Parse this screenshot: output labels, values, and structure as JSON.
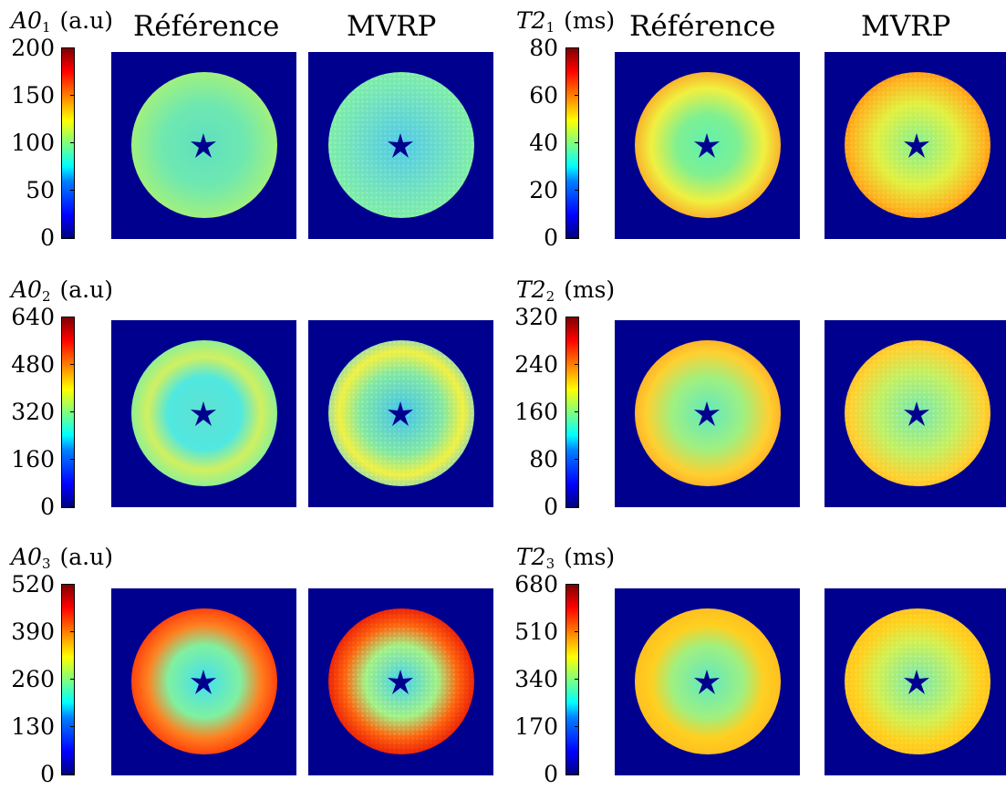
{
  "column_headers": {
    "left_reference": "Référence",
    "left_mvrp": "MVRP",
    "right_reference": "Référence",
    "right_mvrp": "MVRP"
  },
  "rows": [
    {
      "left": {
        "symbol": "A0",
        "index": "1",
        "unit": "(a.u)",
        "ticks": [
          "200",
          "150",
          "100",
          "50",
          "0"
        ]
      },
      "right": {
        "symbol": "T2",
        "index": "1",
        "unit": "(ms)",
        "ticks": [
          "80",
          "60",
          "40",
          "20",
          "0"
        ]
      }
    },
    {
      "left": {
        "symbol": "A0",
        "index": "2",
        "unit": "(a.u)",
        "ticks": [
          "640",
          "480",
          "320",
          "160",
          "0"
        ]
      },
      "right": {
        "symbol": "T2",
        "index": "2",
        "unit": "(ms)",
        "ticks": [
          "320",
          "240",
          "160",
          "80",
          "0"
        ]
      }
    },
    {
      "left": {
        "symbol": "A0",
        "index": "3",
        "unit": "(a.u)",
        "ticks": [
          "520",
          "390",
          "260",
          "130",
          "0"
        ]
      },
      "right": {
        "symbol": "T2",
        "index": "3",
        "unit": "(ms)",
        "ticks": [
          "680",
          "510",
          "340",
          "170",
          "0"
        ]
      }
    }
  ],
  "colormap": "jet",
  "colors": {
    "background": "#00008f"
  }
}
